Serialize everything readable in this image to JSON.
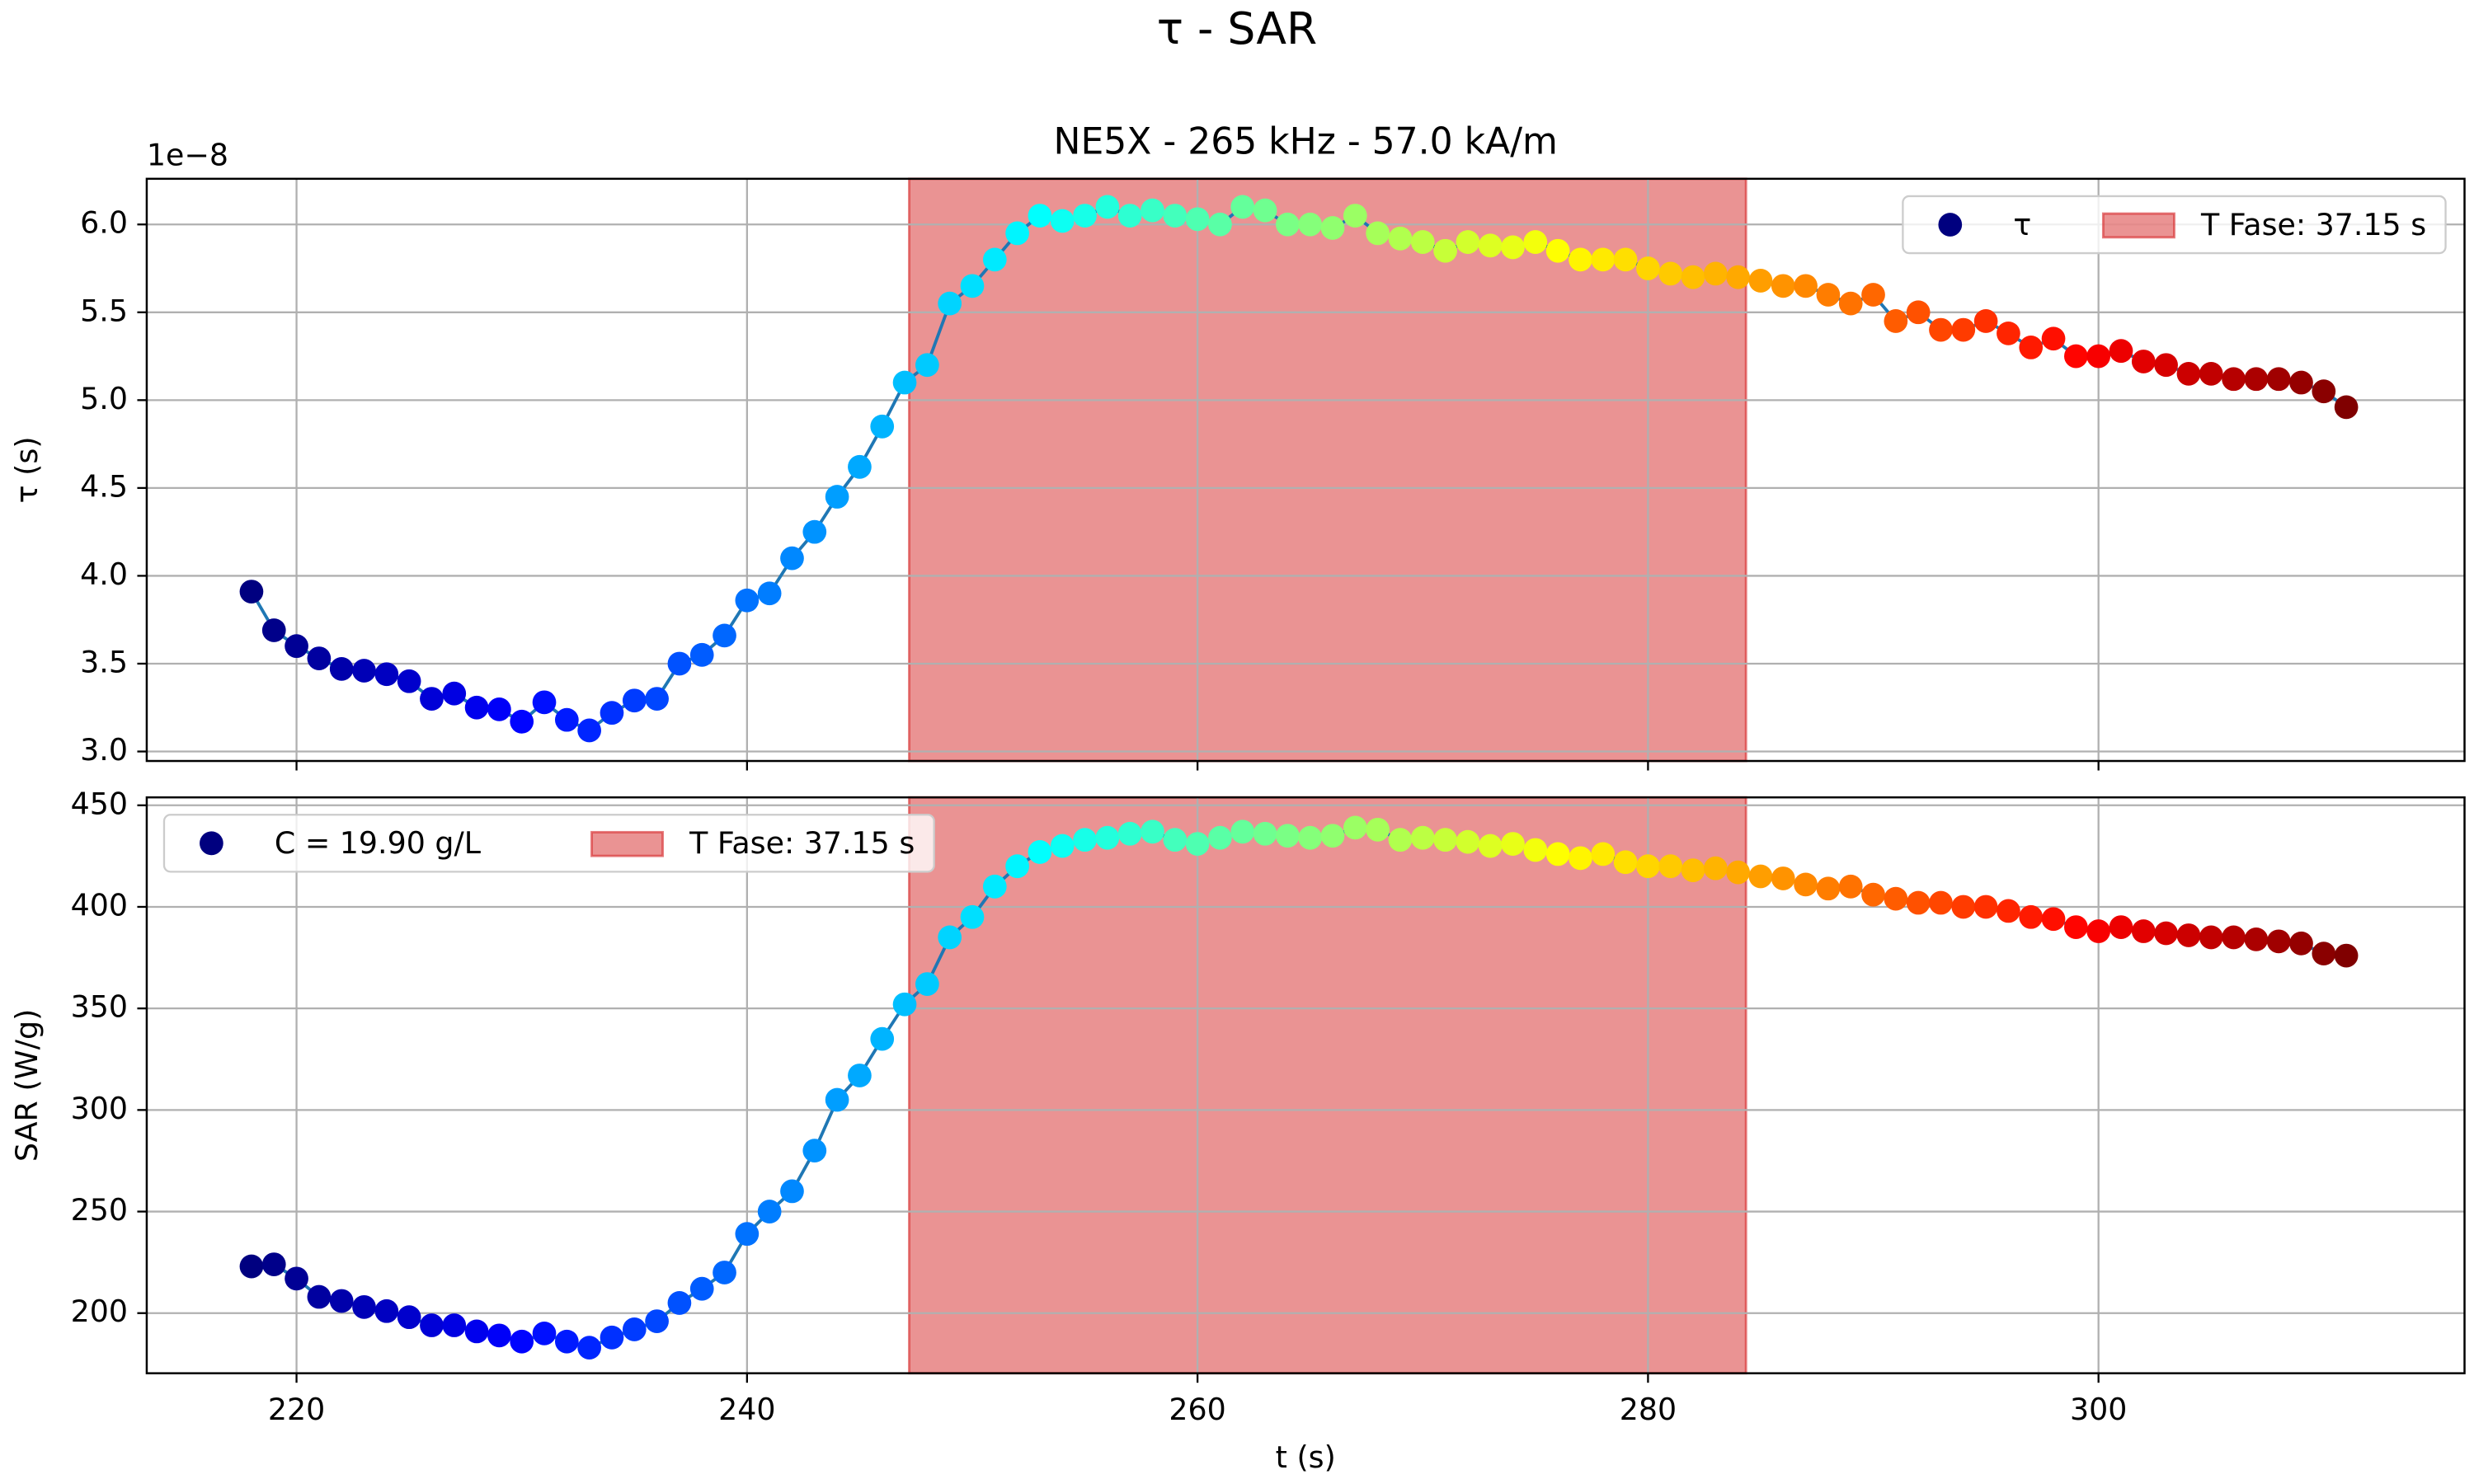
{
  "figure_title": "τ - SAR",
  "chart_data": [
    {
      "type": "scatter",
      "title": "NE5X - 265 kHz - 57.0 kA/m",
      "ylabel": "τ (s)",
      "y_offset_label": "1e−8",
      "colormap": "jet",
      "line_color": "#1f77b4",
      "grid": true,
      "legend": "upper right",
      "show_xtick_labels": false,
      "xlim": [
        213.35,
        316.25
      ],
      "ylim": [
        2.946,
        6.26
      ],
      "xticks": [
        220,
        240,
        260,
        280,
        300
      ],
      "yticks": [
        {
          "value": 3,
          "label": "3.0"
        },
        {
          "value": 3.5,
          "label": "3.5"
        },
        {
          "value": 4,
          "label": "4.0"
        },
        {
          "value": 4.5,
          "label": "4.5"
        },
        {
          "value": 5,
          "label": "5.0"
        },
        {
          "value": 5.5,
          "label": "5.5"
        },
        {
          "value": 6,
          "label": "6.0"
        }
      ],
      "span": {
        "x0": 247.2,
        "x1": 284.35,
        "label": "T Fase: 37.15 s",
        "color": "#d62728"
      },
      "x": [
        218,
        219,
        220,
        221,
        222,
        223,
        224,
        225,
        226,
        227,
        228,
        229,
        230,
        231,
        232,
        233,
        234,
        235,
        236,
        237,
        238,
        239,
        240,
        241,
        242,
        243,
        244,
        245,
        246,
        247,
        248,
        249,
        250,
        251,
        252,
        253,
        254,
        255,
        256,
        257,
        258,
        259,
        260,
        261,
        262,
        263,
        264,
        265,
        266,
        267,
        268,
        269,
        270,
        271,
        272,
        273,
        274,
        275,
        276,
        277,
        278,
        279,
        280,
        281,
        282,
        283,
        284,
        285,
        286,
        287,
        288,
        289,
        290,
        291,
        292,
        293,
        294,
        295,
        296,
        297,
        298,
        299,
        300,
        301,
        302,
        303,
        304,
        305,
        306,
        307,
        308,
        309,
        310,
        311
      ],
      "series": [
        {
          "name": "τ",
          "color": "#00007f",
          "values": [
            3.91,
            3.69,
            3.6,
            3.53,
            3.47,
            3.46,
            3.44,
            3.4,
            3.3,
            3.33,
            3.25,
            3.24,
            3.17,
            3.28,
            3.18,
            3.12,
            3.22,
            3.29,
            3.3,
            3.5,
            3.55,
            3.66,
            3.86,
            3.9,
            4.1,
            4.25,
            4.45,
            4.62,
            4.85,
            5.1,
            5.2,
            5.55,
            5.65,
            5.8,
            5.95,
            6.05,
            6.02,
            6.05,
            6.1,
            6.05,
            6.08,
            6.05,
            6.03,
            6.0,
            6.1,
            6.08,
            6.0,
            6.0,
            5.98,
            6.05,
            5.95,
            5.92,
            5.9,
            5.85,
            5.9,
            5.88,
            5.87,
            5.9,
            5.85,
            5.8,
            5.8,
            5.8,
            5.75,
            5.72,
            5.7,
            5.72,
            5.7,
            5.68,
            5.65,
            5.65,
            5.6,
            5.55,
            5.6,
            5.45,
            5.5,
            5.4,
            5.4,
            5.45,
            5.38,
            5.3,
            5.35,
            5.25,
            5.25,
            5.28,
            5.22,
            5.2,
            5.15,
            5.15,
            5.12,
            5.12,
            5.12,
            5.1,
            5.05,
            4.96
          ]
        }
      ]
    },
    {
      "type": "scatter",
      "ylabel": "SAR (W/g)",
      "xlabel": "t (s)",
      "colormap": "jet",
      "line_color": "#1f77b4",
      "grid": true,
      "legend": "upper left",
      "show_xtick_labels": true,
      "xlim": [
        213.35,
        316.25
      ],
      "ylim": [
        170.4,
        453.9
      ],
      "xticks": [
        220,
        240,
        260,
        280,
        300
      ],
      "yticks": [
        200,
        250,
        300,
        350,
        400,
        450
      ],
      "span": {
        "x0": 247.2,
        "x1": 284.35,
        "label": "T Fase: 37.15 s",
        "color": "#d62728"
      },
      "x": [
        218,
        219,
        220,
        221,
        222,
        223,
        224,
        225,
        226,
        227,
        228,
        229,
        230,
        231,
        232,
        233,
        234,
        235,
        236,
        237,
        238,
        239,
        240,
        241,
        242,
        243,
        244,
        245,
        246,
        247,
        248,
        249,
        250,
        251,
        252,
        253,
        254,
        255,
        256,
        257,
        258,
        259,
        260,
        261,
        262,
        263,
        264,
        265,
        266,
        267,
        268,
        269,
        270,
        271,
        272,
        273,
        274,
        275,
        276,
        277,
        278,
        279,
        280,
        281,
        282,
        283,
        284,
        285,
        286,
        287,
        288,
        289,
        290,
        291,
        292,
        293,
        294,
        295,
        296,
        297,
        298,
        299,
        300,
        301,
        302,
        303,
        304,
        305,
        306,
        307,
        308,
        309,
        310,
        311
      ],
      "series": [
        {
          "name": "C = 19.90 g/L",
          "color": "#00007f",
          "values": [
            223,
            224,
            217,
            208,
            206,
            203,
            201,
            198,
            194,
            194,
            191,
            189,
            186,
            190,
            186,
            183,
            188,
            192,
            196,
            205,
            212,
            220,
            239,
            250,
            260,
            280,
            305,
            317,
            335,
            352,
            362,
            385,
            395,
            410,
            420,
            427,
            430,
            433,
            434,
            436,
            437,
            433,
            431,
            434,
            437,
            436,
            435,
            434,
            435,
            439,
            438,
            433,
            434,
            433,
            432,
            430,
            431,
            428,
            426,
            424,
            426,
            422,
            420,
            420,
            418,
            419,
            417,
            415,
            414,
            411,
            409,
            410,
            406,
            404,
            402,
            402,
            400,
            400,
            398,
            395,
            394,
            390,
            388,
            390,
            388,
            387,
            386,
            385,
            385,
            384,
            383,
            382,
            377,
            376
          ]
        }
      ]
    }
  ]
}
